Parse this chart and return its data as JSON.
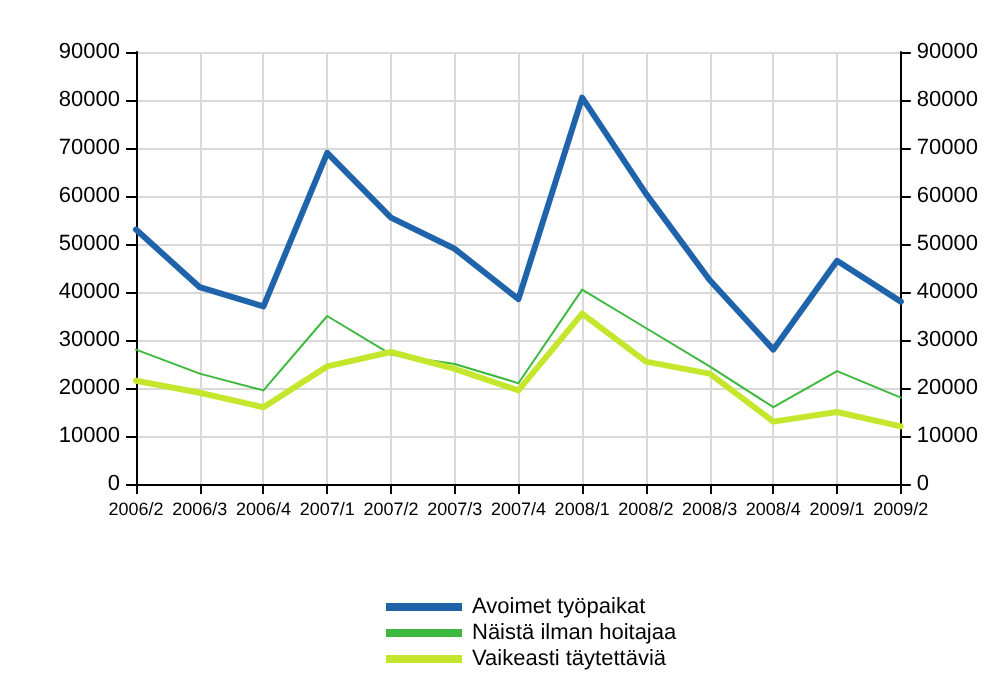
{
  "chart_data": {
    "type": "line",
    "categories": [
      "2006/2",
      "2006/3",
      "2006/4",
      "2007/1",
      "2007/2",
      "2007/3",
      "2007/4",
      "2008/1",
      "2008/2",
      "2008/3",
      "2008/4",
      "2009/1",
      "2009/2"
    ],
    "series": [
      {
        "name": "Avoimet työpaikat",
        "color": "#1f63aa",
        "values": [
          53000,
          41000,
          37000,
          69000,
          55500,
          49000,
          38500,
          80500,
          60500,
          42500,
          28000,
          46500,
          38000
        ]
      },
      {
        "name": "Näistä ilman hoitajaa",
        "color": "#3cb83c",
        "values": [
          28000,
          23000,
          19500,
          35000,
          27000,
          25000,
          21000,
          40500,
          32500,
          24500,
          16000,
          23500,
          18000
        ]
      },
      {
        "name": "Vaikeasti täytettäviä",
        "color": "#c4e62c",
        "values": [
          21500,
          19000,
          16000,
          24500,
          27500,
          24000,
          19500,
          35500,
          25500,
          23000,
          13000,
          15000,
          12000
        ]
      }
    ],
    "ylim": [
      0,
      90000
    ],
    "yticks": [
      0,
      10000,
      20000,
      30000,
      40000,
      50000,
      60000,
      70000,
      80000,
      90000
    ],
    "y2lim": [
      0,
      90000
    ],
    "y2ticks": [
      0,
      10000,
      20000,
      30000,
      40000,
      50000,
      60000,
      70000,
      80000,
      90000
    ],
    "grid": true,
    "legend": "bottom",
    "marker": "none",
    "line_style": "solid"
  }
}
